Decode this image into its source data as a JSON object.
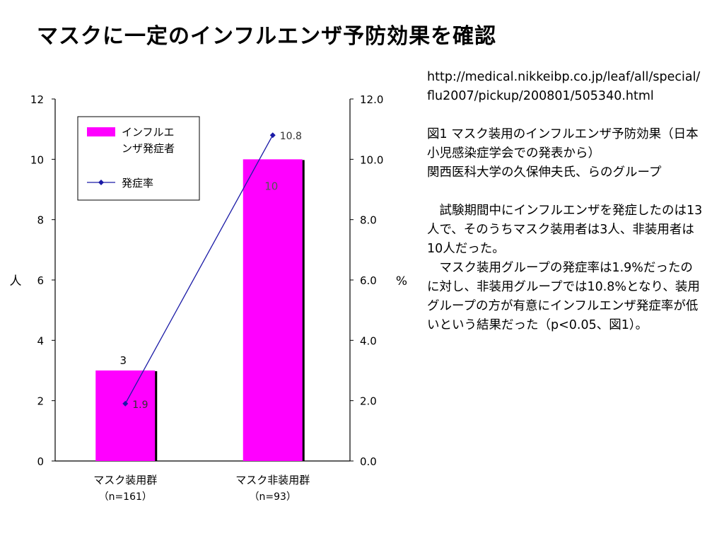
{
  "title": "マスクに一定のインフルエンザ予防効果を確認",
  "side": {
    "url": "http://medical.nikkeibp.co.jp/leaf/all/special/flu2007/pickup/200801/505340.html",
    "caption1": "図1 マスク装用のインフルエンザ予防効果（日本小児感染症学会での発表から）",
    "caption2": "関西医科大学の久保伸夫氏、らのグループ",
    "para1": "試験期間中にインフルエンザを発症したのは13人で、そのうちマスク装用者は3人、非装用者は10人だった。",
    "para2": "マスク装用グループの発症率は1.9%だったのに対し、非装用グループでは10.8%となり、装用グループの方が有意にインフルエンザ発症率が低いという結果だった（p<0.05、図1）。"
  },
  "chart_data": {
    "type": "bar",
    "categories": [
      "マスク装用群",
      "マスク非装用群"
    ],
    "category_notes": [
      "（n=161）",
      "（n=93）"
    ],
    "series": [
      {
        "name": "インフルエンザ発症者",
        "type": "bar",
        "axis": "left",
        "values": [
          3,
          10
        ],
        "value_labels": [
          "3",
          "10"
        ],
        "color": "#ff00ff"
      },
      {
        "name": "発症率",
        "type": "line",
        "axis": "right",
        "values": [
          1.9,
          10.8
        ],
        "value_labels": [
          "1.9",
          "10.8"
        ],
        "color": "#1a1aa6"
      }
    ],
    "ylabel": "人",
    "y2label": "%",
    "ylim": [
      0,
      12
    ],
    "y2lim": [
      0,
      12
    ],
    "yticks": [
      "0",
      "2",
      "4",
      "6",
      "8",
      "10",
      "12"
    ],
    "y2ticks": [
      "0.0",
      "2.0",
      "4.0",
      "6.0",
      "8.0",
      "10.0",
      "12.0"
    ],
    "legend_position": "top-left",
    "grid": false
  }
}
